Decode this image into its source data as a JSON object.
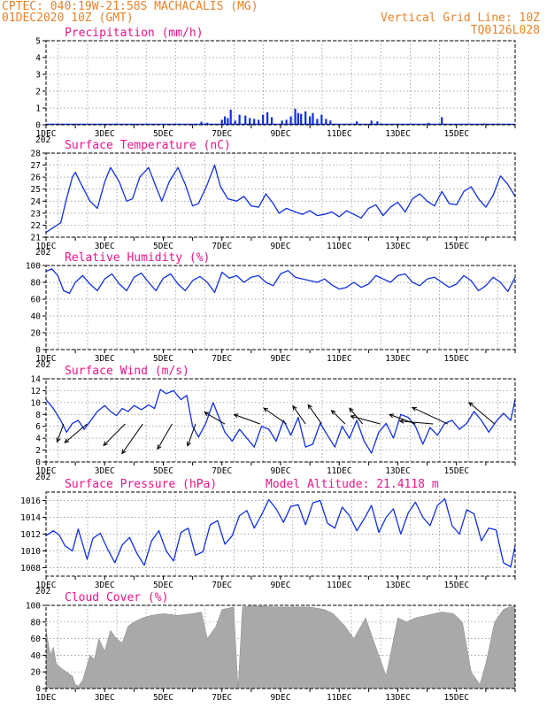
{
  "header": {
    "line1_left": "CPTEC:   040:19W-21:58S   MACHACALIS (MG)",
    "line2_left": "01DEC2020 10Z (GMT)",
    "line1_right": "Vertical Grid Line: 10Z",
    "line2_right": "TQ0126L028"
  },
  "x_axis": {
    "labels": [
      "1DEC",
      "3DEC",
      "5DEC",
      "7DEC",
      "9DEC",
      "11DEC",
      "13DEC",
      "15DEC"
    ],
    "year_prefix": "202"
  },
  "colors": {
    "header": "#e8832a",
    "title": "#e8168a",
    "series": "#1030e0",
    "cloud": "#a9a9a9"
  },
  "chart_data": [
    {
      "type": "bar",
      "title": "Precipitation (mm/h)",
      "ylim": [
        0,
        5
      ],
      "yticks": [
        "0",
        "1",
        "2",
        "3",
        "4",
        "5"
      ],
      "x_unit": "days since 01DEC2020 00Z",
      "values": [
        [
          5.3,
          0.18
        ],
        [
          5.4,
          0.06
        ],
        [
          5.5,
          0.12
        ],
        [
          6.0,
          0.3
        ],
        [
          6.1,
          0.5
        ],
        [
          6.2,
          0.4
        ],
        [
          6.3,
          0.9
        ],
        [
          6.45,
          0.25
        ],
        [
          6.6,
          0.6
        ],
        [
          6.8,
          0.55
        ],
        [
          6.95,
          0.4
        ],
        [
          7.1,
          0.35
        ],
        [
          7.25,
          0.3
        ],
        [
          7.4,
          0.6
        ],
        [
          7.55,
          0.75
        ],
        [
          7.7,
          0.45
        ],
        [
          8.05,
          0.25
        ],
        [
          8.2,
          0.3
        ],
        [
          8.35,
          0.5
        ],
        [
          8.5,
          0.95
        ],
        [
          8.6,
          0.7
        ],
        [
          8.7,
          0.65
        ],
        [
          8.85,
          0.8
        ],
        [
          9.0,
          0.5
        ],
        [
          9.1,
          0.7
        ],
        [
          9.25,
          0.35
        ],
        [
          9.4,
          0.6
        ],
        [
          9.55,
          0.35
        ],
        [
          9.7,
          0.25
        ],
        [
          10.6,
          0.2
        ],
        [
          11.1,
          0.25
        ],
        [
          11.3,
          0.2
        ],
        [
          13.05,
          0.12
        ],
        [
          13.5,
          0.45
        ],
        [
          14.95,
          0.08
        ]
      ]
    },
    {
      "type": "line",
      "title": "Surface Temperature (nC)",
      "ylim": [
        21,
        28
      ],
      "yticks": [
        "21",
        "22",
        "23",
        "24",
        "25",
        "26",
        "27",
        "28"
      ],
      "x": [
        0,
        0.25,
        0.5,
        0.7,
        0.9,
        1.0,
        1.2,
        1.5,
        1.75,
        2.0,
        2.2,
        2.5,
        2.75,
        2.95,
        3.2,
        3.5,
        3.75,
        3.95,
        4.2,
        4.5,
        4.75,
        5.0,
        5.2,
        5.5,
        5.75,
        5.95,
        6.2,
        6.5,
        6.75,
        7.0,
        7.25,
        7.5,
        7.75,
        7.95,
        8.2,
        8.5,
        8.75,
        9.0,
        9.25,
        9.5,
        9.75,
        10.0,
        10.25,
        10.5,
        10.75,
        11.0,
        11.25,
        11.5,
        11.75,
        12.0,
        12.25,
        12.5,
        12.75,
        13.0,
        13.25,
        13.5,
        13.75,
        14.0,
        14.25,
        14.5,
        14.75,
        15.0,
        15.25,
        15.5,
        15.75,
        16.0
      ],
      "y": [
        21.4,
        21.8,
        22.2,
        24.2,
        26.0,
        26.4,
        25.4,
        24.0,
        23.4,
        25.6,
        26.8,
        25.6,
        24.0,
        24.2,
        26.0,
        26.8,
        25.2,
        24.0,
        25.6,
        26.8,
        25.4,
        23.6,
        23.8,
        25.4,
        27.0,
        25.2,
        24.2,
        24.0,
        24.4,
        23.6,
        23.5,
        24.6,
        23.8,
        23.0,
        23.4,
        23.1,
        22.9,
        23.2,
        22.8,
        22.9,
        23.1,
        22.7,
        23.2,
        22.9,
        22.6,
        23.4,
        23.7,
        22.8,
        23.5,
        23.9,
        23.1,
        24.2,
        24.6,
        24.0,
        23.6,
        24.8,
        23.8,
        23.7,
        24.8,
        25.2,
        24.2,
        23.5,
        24.5,
        26.1,
        25.4,
        24.4
      ]
    },
    {
      "type": "line",
      "title": "Relative Humidity (%)",
      "ylim": [
        0,
        100
      ],
      "yticks": [
        "0",
        "20",
        "40",
        "60",
        "80",
        "100"
      ],
      "x": [
        0,
        0.2,
        0.4,
        0.6,
        0.8,
        1.0,
        1.25,
        1.5,
        1.75,
        2.0,
        2.25,
        2.5,
        2.75,
        3.0,
        3.25,
        3.5,
        3.75,
        4.0,
        4.25,
        4.5,
        4.75,
        5.0,
        5.25,
        5.5,
        5.75,
        6.0,
        6.25,
        6.5,
        6.75,
        7.0,
        7.25,
        7.5,
        7.75,
        8.0,
        8.25,
        8.5,
        8.75,
        9.0,
        9.25,
        9.5,
        9.75,
        10.0,
        10.25,
        10.5,
        10.75,
        11.0,
        11.25,
        11.5,
        11.75,
        12.0,
        12.25,
        12.5,
        12.75,
        13.0,
        13.25,
        13.5,
        13.75,
        14.0,
        14.25,
        14.5,
        14.75,
        15.0,
        15.25,
        15.5,
        15.75,
        16.0
      ],
      "y": [
        93,
        96,
        88,
        70,
        67,
        80,
        88,
        78,
        70,
        84,
        90,
        78,
        70,
        86,
        91,
        80,
        70,
        85,
        90,
        78,
        70,
        82,
        87,
        80,
        68,
        92,
        85,
        88,
        80,
        86,
        88,
        80,
        76,
        90,
        94,
        86,
        84,
        82,
        80,
        84,
        77,
        72,
        74,
        80,
        74,
        78,
        88,
        84,
        80,
        88,
        90,
        80,
        76,
        84,
        86,
        80,
        74,
        78,
        88,
        82,
        70,
        76,
        86,
        80,
        69,
        86
      ]
    },
    {
      "type": "line",
      "title": "Surface Wind (m/s)",
      "ylim": [
        0,
        14
      ],
      "yticks": [
        "0",
        "2",
        "4",
        "6",
        "8",
        "10",
        "12",
        "14"
      ],
      "x": [
        0,
        0.25,
        0.5,
        0.7,
        0.9,
        1.1,
        1.3,
        1.5,
        1.75,
        2.0,
        2.2,
        2.4,
        2.6,
        2.8,
        3.0,
        3.25,
        3.5,
        3.7,
        3.9,
        4.1,
        4.35,
        4.6,
        4.8,
        5.0,
        5.2,
        5.45,
        5.7,
        5.9,
        6.1,
        6.35,
        6.6,
        6.85,
        7.1,
        7.35,
        7.6,
        7.85,
        8.1,
        8.35,
        8.6,
        8.85,
        9.1,
        9.35,
        9.6,
        9.85,
        10.1,
        10.35,
        10.6,
        10.85,
        11.1,
        11.35,
        11.6,
        11.85,
        12.1,
        12.35,
        12.6,
        12.85,
        13.1,
        13.35,
        13.6,
        13.85,
        14.1,
        14.35,
        14.6,
        14.85,
        15.1,
        15.35,
        15.6,
        15.85,
        16.0
      ],
      "y": [
        10.5,
        9.0,
        7.0,
        5.0,
        6.5,
        7.0,
        5.5,
        6.8,
        8.5,
        9.5,
        8.5,
        7.8,
        9.0,
        8.5,
        9.5,
        8.8,
        9.6,
        9.0,
        12.2,
        11.5,
        12.0,
        10.5,
        11.2,
        6.0,
        4.2,
        6.5,
        10.0,
        7.5,
        5.0,
        3.5,
        5.5,
        4.0,
        2.5,
        6.0,
        5.5,
        3.5,
        7.0,
        4.5,
        7.5,
        2.5,
        3.0,
        6.5,
        4.5,
        2.5,
        6.0,
        4.0,
        7.0,
        3.5,
        1.5,
        5.0,
        6.5,
        4.0,
        8.0,
        7.5,
        6.0,
        3.0,
        5.8,
        4.5,
        6.5,
        7.0,
        5.5,
        6.5,
        8.5,
        7.0,
        5.0,
        6.8,
        8.2,
        7.0,
        10.5
      ]
    },
    {
      "type": "vector",
      "title": "Surface Wind arrows",
      "note": "arrow direction (deg, 0 = pointing right, counter-clockwise) and relative length",
      "x": [
        0.6,
        1.4,
        2.7,
        3.3,
        4.3,
        5.1,
        6.1,
        7.3,
        8.2,
        8.85,
        9.4,
        10.2,
        10.8,
        11.4,
        12.6,
        13.2,
        13.7,
        15.3
      ],
      "dir_deg": [
        -110,
        -140,
        -135,
        -125,
        -120,
        -110,
        150,
        160,
        145,
        125,
        125,
        135,
        130,
        165,
        160,
        175,
        155,
        140
      ],
      "length": [
        0.3,
        0.65,
        0.7,
        0.9,
        0.65,
        0.45,
        0.45,
        0.6,
        0.6,
        0.4,
        0.45,
        0.3,
        0.35,
        0.7,
        0.6,
        0.8,
        1.0,
        0.8
      ]
    },
    {
      "type": "line",
      "title": "Surface Pressure (hPa)",
      "annotation": "Model Altitude: 21.4118  m",
      "ylim": [
        1007,
        1017
      ],
      "yticks": [
        "1008",
        "1010",
        "1012",
        "1014",
        "1016"
      ],
      "x": [
        0,
        0.25,
        0.45,
        0.65,
        0.9,
        1.1,
        1.4,
        1.6,
        1.85,
        2.1,
        2.35,
        2.6,
        2.85,
        3.1,
        3.35,
        3.6,
        3.85,
        4.1,
        4.35,
        4.6,
        4.85,
        5.1,
        5.35,
        5.6,
        5.85,
        6.1,
        6.35,
        6.6,
        6.85,
        7.1,
        7.35,
        7.6,
        7.85,
        8.1,
        8.35,
        8.6,
        8.85,
        9.1,
        9.35,
        9.6,
        9.85,
        10.1,
        10.35,
        10.6,
        10.85,
        11.1,
        11.35,
        11.6,
        11.85,
        12.1,
        12.35,
        12.6,
        12.85,
        13.1,
        13.35,
        13.6,
        13.85,
        14.1,
        14.35,
        14.6,
        14.85,
        15.1,
        15.35,
        15.6,
        15.85,
        16.0
      ],
      "y": [
        1011.8,
        1012.4,
        1011.9,
        1010.6,
        1010.0,
        1012.6,
        1009.0,
        1011.5,
        1012.1,
        1010.2,
        1008.6,
        1010.7,
        1011.6,
        1009.7,
        1008.3,
        1011.2,
        1012.4,
        1010.0,
        1008.8,
        1012.2,
        1012.7,
        1009.5,
        1009.9,
        1013.1,
        1013.6,
        1010.8,
        1011.8,
        1014.2,
        1014.8,
        1012.7,
        1014.3,
        1016.1,
        1015.0,
        1013.4,
        1015.3,
        1015.5,
        1013.1,
        1015.7,
        1016.0,
        1013.3,
        1012.7,
        1015.2,
        1014.2,
        1012.4,
        1013.8,
        1015.4,
        1012.2,
        1014.0,
        1015.0,
        1012.0,
        1014.5,
        1015.8,
        1014.0,
        1013.0,
        1015.4,
        1016.2,
        1013.0,
        1012.0,
        1014.9,
        1014.4,
        1011.2,
        1012.7,
        1012.5,
        1008.6,
        1008.1,
        1010.6
      ]
    },
    {
      "type": "area",
      "title": "Cloud Cover (%)",
      "ylim": [
        0,
        100
      ],
      "yticks": [
        "0",
        "20",
        "40",
        "60",
        "80",
        "100"
      ],
      "x": [
        0,
        0.15,
        0.25,
        0.35,
        0.5,
        0.7,
        0.9,
        1.0,
        1.1,
        1.25,
        1.5,
        1.65,
        1.8,
        2.0,
        2.2,
        2.4,
        2.6,
        2.8,
        3.0,
        3.3,
        3.6,
        4.0,
        4.5,
        5.0,
        5.3,
        5.5,
        5.8,
        6.0,
        6.4,
        6.55,
        6.7,
        7.0,
        8.0,
        9.0,
        9.5,
        9.8,
        10.2,
        10.5,
        10.9,
        11.3,
        11.6,
        11.8,
        12.0,
        12.3,
        12.6,
        13.0,
        13.5,
        13.9,
        14.2,
        14.5,
        14.8,
        15.0,
        15.3,
        15.6,
        15.8,
        16.0
      ],
      "y": [
        70,
        40,
        50,
        30,
        25,
        20,
        15,
        5,
        3,
        10,
        40,
        35,
        60,
        45,
        70,
        60,
        55,
        75,
        80,
        85,
        88,
        90,
        88,
        90,
        92,
        60,
        75,
        95,
        98,
        0,
        98,
        99,
        98,
        98,
        95,
        90,
        75,
        60,
        85,
        45,
        15,
        50,
        85,
        80,
        85,
        88,
        92,
        90,
        80,
        20,
        5,
        30,
        80,
        95,
        98,
        99
      ]
    }
  ]
}
